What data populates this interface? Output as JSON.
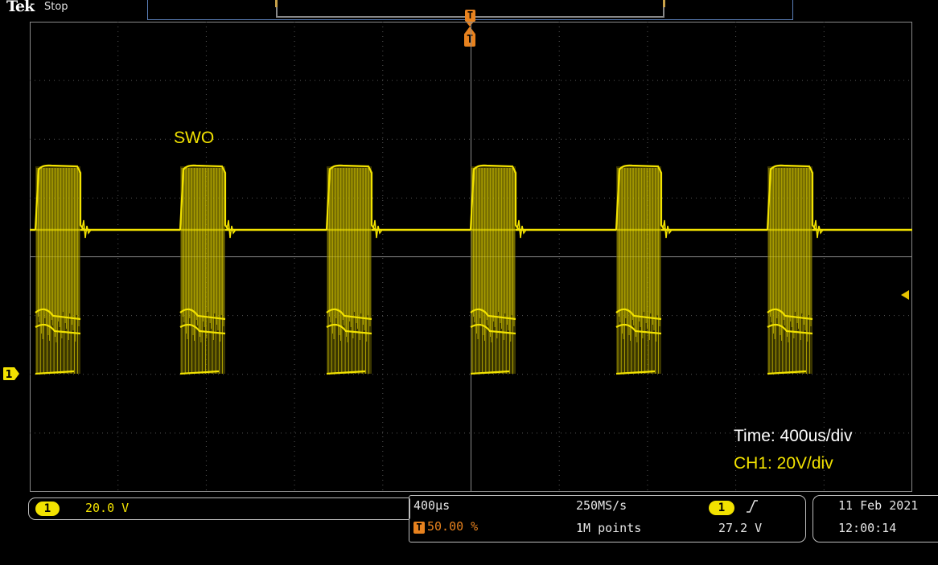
{
  "header": {
    "brand": "Tek",
    "acq_state": "Stop"
  },
  "waveform": {
    "label": "SWO",
    "pulse_count": 6,
    "colors": {
      "trace": "#f2e200",
      "grid": "#555555",
      "axis": "#8a8a8a",
      "trigger": "#e8821e"
    }
  },
  "markers": {
    "trigger_position": "T",
    "channel": "1"
  },
  "annotations": {
    "time": "Time: 400us/div",
    "ch1": "CH1: 20V/div"
  },
  "status": {
    "channel": {
      "number": "1",
      "scale": "20.0 V"
    },
    "horizontal": {
      "time_per_div": "400µs",
      "trigger_position_icon": "T",
      "trigger_position": "50.00 %",
      "sample_rate": "250MS/s",
      "record_length": "1M points"
    },
    "trigger": {
      "source": "1",
      "slope_icon": "rising-edge-icon",
      "level": "27.2 V"
    },
    "date": "11 Feb  2021",
    "time": "12:00:14"
  }
}
